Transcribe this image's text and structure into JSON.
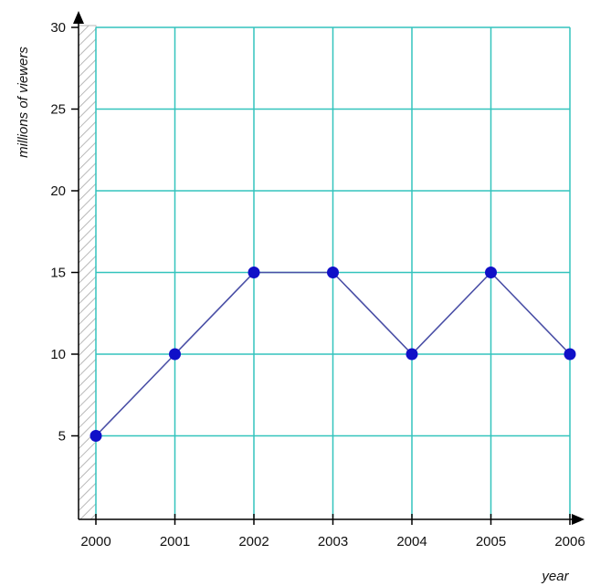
{
  "chart_data": {
    "type": "line",
    "xlabel": "year",
    "ylabel": "millions of viewers",
    "x": [
      "2000",
      "2001",
      "2002",
      "2003",
      "2004",
      "2005",
      "2006"
    ],
    "y_ticks": [
      "5",
      "10",
      "15",
      "20",
      "25",
      "30"
    ],
    "series": [
      {
        "values": [
          5,
          10,
          15,
          15,
          10,
          15,
          10
        ]
      }
    ],
    "ylim": [
      0,
      30
    ],
    "grid": true,
    "colors": {
      "grid": "#33c4bd",
      "line": "#4a4fa6",
      "marker": "#1010c8",
      "axis": "#000000",
      "hatch": "#b8b8b8"
    }
  }
}
